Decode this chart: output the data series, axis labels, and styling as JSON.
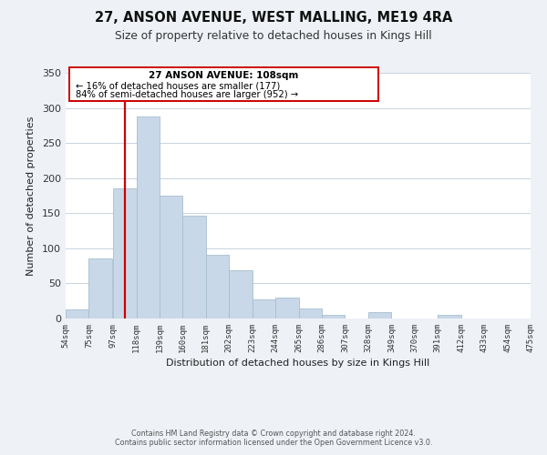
{
  "title": "27, ANSON AVENUE, WEST MALLING, ME19 4RA",
  "subtitle": "Size of property relative to detached houses in Kings Hill",
  "xlabel": "Distribution of detached houses by size in Kings Hill",
  "ylabel": "Number of detached properties",
  "bar_color": "#c8d8e8",
  "bar_edge_color": "#a8bece",
  "vline_color": "#cc0000",
  "vline_x": 108,
  "annotation_title": "27 ANSON AVENUE: 108sqm",
  "annotation_line1": "← 16% of detached houses are smaller (177)",
  "annotation_line2": "84% of semi-detached houses are larger (952) →",
  "bins_left": [
    54,
    75,
    97,
    118,
    139,
    160,
    181,
    202,
    223,
    244,
    265,
    286,
    307,
    328,
    349,
    370,
    391,
    412,
    433,
    454
  ],
  "bin_width": 21,
  "counts": [
    13,
    86,
    185,
    288,
    175,
    146,
    91,
    69,
    27,
    30,
    14,
    5,
    0,
    9,
    0,
    0,
    5,
    0,
    0,
    0
  ],
  "xlim": [
    54,
    475
  ],
  "ylim": [
    0,
    350
  ],
  "yticks": [
    0,
    50,
    100,
    150,
    200,
    250,
    300,
    350
  ],
  "xtick_labels": [
    "54sqm",
    "75sqm",
    "97sqm",
    "118sqm",
    "139sqm",
    "160sqm",
    "181sqm",
    "202sqm",
    "223sqm",
    "244sqm",
    "265sqm",
    "286sqm",
    "307sqm",
    "328sqm",
    "349sqm",
    "370sqm",
    "391sqm",
    "412sqm",
    "433sqm",
    "454sqm",
    "475sqm"
  ],
  "xtick_positions": [
    54,
    75,
    97,
    118,
    139,
    160,
    181,
    202,
    223,
    244,
    265,
    286,
    307,
    328,
    349,
    370,
    391,
    412,
    433,
    454,
    475
  ],
  "footer_line1": "Contains HM Land Registry data © Crown copyright and database right 2024.",
  "footer_line2": "Contains public sector information licensed under the Open Government Licence v3.0.",
  "background_color": "#eef2f7",
  "plot_background_color": "#ffffff",
  "grid_color": "#c8d4e0"
}
